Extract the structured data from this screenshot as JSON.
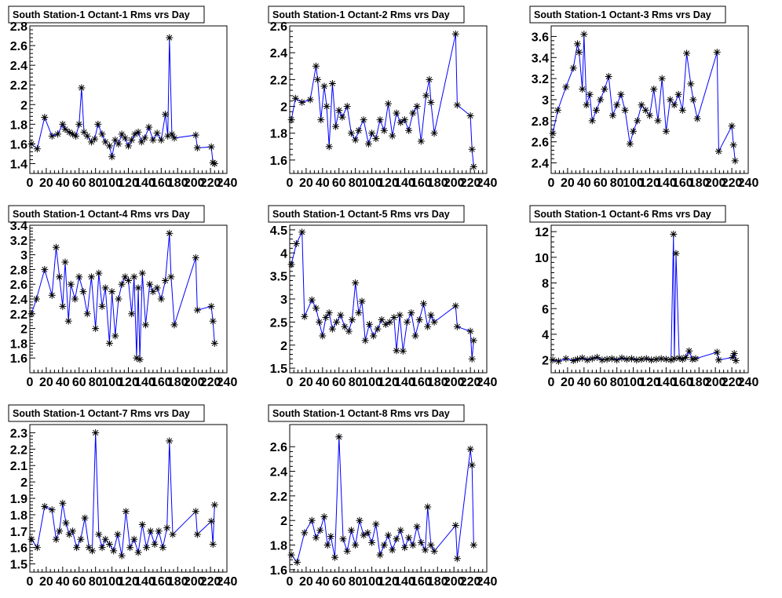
{
  "chart_data": [
    {
      "type": "line",
      "title": "South Station-1 Octant-1 Rms vrs Day",
      "xlabel": "",
      "ylabel": "",
      "xlim": [
        0,
        240
      ],
      "ylim": [
        1.3,
        2.8
      ],
      "x_ticks": [
        0,
        20,
        40,
        60,
        80,
        100,
        120,
        140,
        160,
        180,
        200,
        220,
        240
      ],
      "y_ticks": [
        1.4,
        1.6,
        1.8,
        2,
        2.2,
        2.4,
        2.6,
        2.8
      ],
      "y_tick_labels": [
        "1.4",
        "1.6",
        "1.8",
        "2",
        "2.2",
        "2.4",
        "2.6",
        "2.8"
      ],
      "series": [
        {
          "marker": "*",
          "line_color": "#0000ff",
          "marker_color": "#000000",
          "x": [
            2,
            9,
            18,
            27,
            34,
            40,
            43,
            48,
            52,
            56,
            60,
            63,
            66,
            70,
            75,
            79,
            83,
            88,
            92,
            97,
            100,
            104,
            108,
            112,
            116,
            120,
            124,
            128,
            132,
            136,
            140,
            145,
            150,
            155,
            160,
            165,
            168,
            170,
            173,
            176,
            202,
            204,
            221,
            223,
            225
          ],
          "y": [
            1.6,
            1.55,
            1.87,
            1.68,
            1.7,
            1.8,
            1.75,
            1.72,
            1.7,
            1.68,
            1.8,
            2.17,
            1.72,
            1.68,
            1.62,
            1.65,
            1.8,
            1.7,
            1.62,
            1.58,
            1.47,
            1.64,
            1.6,
            1.7,
            1.66,
            1.58,
            1.64,
            1.7,
            1.72,
            1.62,
            1.66,
            1.77,
            1.64,
            1.71,
            1.64,
            1.9,
            1.68,
            2.68,
            1.7,
            1.66,
            1.69,
            1.56,
            1.57,
            1.41,
            1.4
          ]
        }
      ]
    },
    {
      "type": "line",
      "title": "South Station-1 Octant-2 Rms vrs Day",
      "xlabel": "",
      "ylabel": "",
      "xlim": [
        0,
        240
      ],
      "ylim": [
        1.5,
        2.6
      ],
      "x_ticks": [
        0,
        20,
        40,
        60,
        80,
        100,
        120,
        140,
        160,
        180,
        200,
        220,
        240
      ],
      "y_ticks": [
        1.6,
        1.8,
        2,
        2.2,
        2.4,
        2.6
      ],
      "y_tick_labels": [
        "1.6",
        "1.8",
        "2",
        "2.2",
        "2.4",
        "2.6"
      ],
      "series": [
        {
          "marker": "*",
          "line_color": "#0000ff",
          "marker_color": "#000000",
          "x": [
            2,
            7,
            15,
            25,
            32,
            34,
            38,
            42,
            45,
            48,
            52,
            56,
            60,
            64,
            70,
            75,
            80,
            84,
            90,
            96,
            100,
            105,
            110,
            115,
            120,
            125,
            130,
            135,
            140,
            145,
            150,
            155,
            160,
            166,
            170,
            172,
            176,
            202,
            204,
            220,
            222,
            224
          ],
          "y": [
            1.9,
            2.06,
            2.03,
            2.05,
            2.3,
            2.2,
            1.9,
            2.15,
            2.0,
            1.7,
            2.17,
            1.85,
            1.97,
            1.92,
            2.0,
            1.8,
            1.75,
            1.82,
            1.9,
            1.72,
            1.8,
            1.76,
            1.9,
            1.82,
            2.02,
            1.78,
            1.95,
            1.88,
            1.9,
            1.82,
            1.95,
            2.0,
            1.74,
            2.08,
            2.2,
            2.03,
            1.8,
            2.54,
            2.01,
            1.93,
            1.68,
            1.55
          ]
        }
      ]
    },
    {
      "type": "line",
      "title": "South Station-1 Octant-3 Rms vrs Day",
      "xlabel": "",
      "ylabel": "",
      "xlim": [
        0,
        240
      ],
      "ylim": [
        2.3,
        3.7
      ],
      "x_ticks": [
        0,
        20,
        40,
        60,
        80,
        100,
        120,
        140,
        160,
        180,
        200,
        220,
        240
      ],
      "y_ticks": [
        2.4,
        2.6,
        2.8,
        3,
        3.2,
        3.4,
        3.6
      ],
      "y_tick_labels": [
        "2.4",
        "2.6",
        "2.8",
        "3",
        "3.2",
        "3.4",
        "3.6"
      ],
      "series": [
        {
          "marker": "*",
          "line_color": "#0000ff",
          "marker_color": "#000000",
          "x": [
            2,
            8,
            18,
            27,
            32,
            34,
            38,
            40,
            43,
            47,
            50,
            55,
            60,
            65,
            70,
            75,
            80,
            85,
            90,
            96,
            100,
            105,
            110,
            115,
            120,
            125,
            130,
            135,
            140,
            145,
            150,
            155,
            160,
            165,
            170,
            173,
            178,
            202,
            204,
            220,
            222,
            224
          ],
          "y": [
            2.68,
            2.9,
            3.12,
            3.3,
            3.53,
            3.45,
            3.1,
            3.62,
            2.95,
            3.05,
            2.8,
            2.9,
            3.0,
            3.1,
            3.22,
            2.85,
            2.95,
            3.05,
            2.9,
            2.58,
            2.7,
            2.8,
            2.95,
            2.9,
            2.85,
            3.1,
            2.8,
            3.2,
            2.7,
            3.0,
            2.95,
            3.05,
            2.9,
            3.44,
            3.15,
            3.0,
            2.82,
            3.45,
            2.51,
            2.75,
            2.57,
            2.42
          ]
        }
      ]
    },
    {
      "type": "line",
      "title": "South Station-1 Octant-4 Rms vrs Day",
      "xlabel": "",
      "ylabel": "",
      "xlim": [
        0,
        240
      ],
      "ylim": [
        1.4,
        3.4
      ],
      "x_ticks": [
        0,
        20,
        40,
        60,
        80,
        100,
        120,
        140,
        160,
        180,
        200,
        220,
        240
      ],
      "y_ticks": [
        1.6,
        1.8,
        2,
        2.2,
        2.4,
        2.6,
        2.8,
        3,
        3.2,
        3.4
      ],
      "y_tick_labels": [
        "1.6",
        "1.8",
        "2",
        "2.2",
        "2.4",
        "2.6",
        "2.8",
        "3",
        "3.2",
        "3.4"
      ],
      "series": [
        {
          "marker": "*",
          "line_color": "#0000ff",
          "marker_color": "#000000",
          "x": [
            2,
            8,
            18,
            27,
            32,
            36,
            40,
            43,
            47,
            50,
            55,
            60,
            65,
            70,
            75,
            80,
            84,
            88,
            92,
            97,
            100,
            104,
            108,
            112,
            116,
            120,
            124,
            127,
            130,
            132,
            134,
            137,
            141,
            146,
            150,
            155,
            160,
            165,
            170,
            172,
            176,
            202,
            204,
            221,
            223,
            225
          ],
          "y": [
            2.2,
            2.4,
            2.8,
            2.45,
            3.1,
            2.7,
            2.3,
            2.9,
            2.1,
            2.6,
            2.4,
            2.7,
            2.5,
            2.2,
            2.7,
            2.0,
            2.75,
            2.3,
            2.55,
            1.8,
            2.5,
            1.9,
            2.4,
            2.6,
            2.7,
            2.65,
            2.2,
            2.7,
            1.6,
            2.55,
            1.58,
            2.75,
            2.05,
            2.6,
            2.5,
            2.55,
            2.4,
            2.65,
            3.29,
            2.7,
            2.05,
            2.96,
            2.25,
            2.3,
            2.1,
            1.8
          ]
        }
      ]
    },
    {
      "type": "line",
      "title": "South Station-1 Octant-5 Rms vrs Day",
      "xlabel": "",
      "ylabel": "",
      "xlim": [
        0,
        240
      ],
      "ylim": [
        1.4,
        4.6
      ],
      "x_ticks": [
        0,
        20,
        40,
        60,
        80,
        100,
        120,
        140,
        160,
        180,
        200,
        220,
        240
      ],
      "y_ticks": [
        1.5,
        2,
        2.5,
        3,
        3.5,
        4,
        4.5
      ],
      "y_tick_labels": [
        "1.5",
        "2",
        "2.5",
        "3",
        "3.5",
        "4",
        "4.5"
      ],
      "series": [
        {
          "marker": "*",
          "line_color": "#0000ff",
          "marker_color": "#000000",
          "x": [
            2,
            8,
            15,
            18,
            27,
            32,
            36,
            40,
            44,
            48,
            52,
            57,
            62,
            67,
            72,
            76,
            80,
            84,
            88,
            92,
            97,
            102,
            107,
            112,
            117,
            122,
            127,
            130,
            134,
            138,
            143,
            148,
            153,
            158,
            163,
            168,
            172,
            176,
            202,
            204,
            220,
            222,
            224
          ],
          "y": [
            3.75,
            4.2,
            4.45,
            2.62,
            2.98,
            2.8,
            2.5,
            2.2,
            2.6,
            2.7,
            2.35,
            2.5,
            2.65,
            2.4,
            2.3,
            2.55,
            3.35,
            2.7,
            2.95,
            2.1,
            2.45,
            2.2,
            2.35,
            2.55,
            2.45,
            2.5,
            2.6,
            1.88,
            2.65,
            1.87,
            2.5,
            2.7,
            2.2,
            2.55,
            2.9,
            2.4,
            2.65,
            2.5,
            2.85,
            2.4,
            2.3,
            1.7,
            2.1
          ]
        }
      ]
    },
    {
      "type": "line",
      "title": "South Station-1 Octant-6 Rms vrs Day",
      "xlabel": "",
      "ylabel": "",
      "xlim": [
        0,
        240
      ],
      "ylim": [
        1,
        12.5
      ],
      "x_ticks": [
        0,
        20,
        40,
        60,
        80,
        100,
        120,
        140,
        160,
        180,
        200,
        220,
        240
      ],
      "y_ticks": [
        2,
        4,
        6,
        8,
        10,
        12
      ],
      "y_tick_labels": [
        "2",
        "4",
        "6",
        "8",
        "10",
        "12"
      ],
      "series": [
        {
          "marker": "*",
          "line_color": "#0000ff",
          "marker_color": "#000000",
          "x": [
            2,
            9,
            18,
            27,
            32,
            38,
            44,
            50,
            56,
            62,
            68,
            74,
            80,
            86,
            92,
            98,
            104,
            110,
            116,
            122,
            128,
            134,
            140,
            146,
            149,
            150,
            152,
            156,
            160,
            164,
            168,
            172,
            176,
            202,
            204,
            221,
            223,
            225
          ],
          "y": [
            2.0,
            1.9,
            2.1,
            1.95,
            2.05,
            2.15,
            2.0,
            2.1,
            2.2,
            2.0,
            2.05,
            2.1,
            2.0,
            2.15,
            2.05,
            2.1,
            2.0,
            2.05,
            2.1,
            2.0,
            2.05,
            2.1,
            2.05,
            2.0,
            11.8,
            2.1,
            10.3,
            2.15,
            2.05,
            2.2,
            2.7,
            2.05,
            2.1,
            2.6,
            2.0,
            2.2,
            2.5,
            1.95
          ]
        }
      ]
    },
    {
      "type": "line",
      "title": "South Station-1 Octant-7 Rms vrs Day",
      "xlabel": "",
      "ylabel": "",
      "xlim": [
        0,
        240
      ],
      "ylim": [
        1.45,
        2.35
      ],
      "x_ticks": [
        0,
        20,
        40,
        60,
        80,
        100,
        120,
        140,
        160,
        180,
        200,
        220,
        240
      ],
      "y_ticks": [
        1.5,
        1.6,
        1.7,
        1.8,
        1.9,
        2,
        2.1,
        2.2,
        2.3
      ],
      "y_tick_labels": [
        "1.5",
        "1.6",
        "1.7",
        "1.8",
        "1.9",
        "2",
        "2.1",
        "2.2",
        "2.3"
      ],
      "series": [
        {
          "marker": "*",
          "line_color": "#0000ff",
          "marker_color": "#000000",
          "x": [
            2,
            9,
            18,
            27,
            32,
            36,
            40,
            44,
            48,
            52,
            57,
            62,
            67,
            72,
            76,
            80,
            84,
            88,
            92,
            97,
            102,
            107,
            112,
            117,
            122,
            127,
            132,
            137,
            142,
            147,
            152,
            157,
            162,
            167,
            170,
            174,
            202,
            204,
            221,
            223,
            225
          ],
          "y": [
            1.65,
            1.6,
            1.85,
            1.83,
            1.65,
            1.7,
            1.87,
            1.75,
            1.68,
            1.7,
            1.6,
            1.65,
            1.78,
            1.6,
            1.58,
            2.3,
            1.68,
            1.6,
            1.65,
            1.62,
            1.58,
            1.68,
            1.55,
            1.82,
            1.6,
            1.65,
            1.57,
            1.74,
            1.6,
            1.7,
            1.62,
            1.7,
            1.6,
            1.72,
            2.25,
            1.68,
            1.82,
            1.68,
            1.76,
            1.62,
            1.86
          ]
        }
      ]
    },
    {
      "type": "line",
      "title": "South Station-1 Octant-8 Rms vrs Day",
      "xlabel": "",
      "ylabel": "",
      "xlim": [
        0,
        240
      ],
      "ylim": [
        1.58,
        2.78
      ],
      "x_ticks": [
        0,
        20,
        40,
        60,
        80,
        100,
        120,
        140,
        160,
        180,
        200,
        220,
        240
      ],
      "y_ticks": [
        1.6,
        1.8,
        2,
        2.2,
        2.4,
        2.6
      ],
      "y_tick_labels": [
        "1.6",
        "1.8",
        "2",
        "2.2",
        "2.4",
        "2.6"
      ],
      "series": [
        {
          "marker": "*",
          "line_color": "#0000ff",
          "marker_color": "#000000",
          "x": [
            2,
            9,
            18,
            27,
            32,
            37,
            42,
            46,
            50,
            55,
            60,
            65,
            70,
            75,
            80,
            85,
            90,
            95,
            100,
            105,
            110,
            115,
            120,
            125,
            130,
            135,
            140,
            145,
            150,
            155,
            160,
            165,
            168,
            172,
            176,
            202,
            204,
            220,
            222,
            224
          ],
          "y": [
            1.72,
            1.66,
            1.9,
            2.0,
            1.86,
            1.92,
            2.03,
            1.8,
            1.87,
            1.7,
            2.68,
            1.85,
            1.75,
            1.92,
            1.8,
            2.0,
            1.88,
            1.9,
            1.82,
            1.97,
            1.72,
            1.8,
            1.88,
            1.76,
            1.85,
            1.92,
            1.78,
            1.86,
            1.8,
            1.95,
            1.82,
            1.76,
            2.11,
            1.8,
            1.75,
            1.96,
            1.69,
            2.58,
            2.45,
            1.8
          ]
        }
      ]
    }
  ]
}
